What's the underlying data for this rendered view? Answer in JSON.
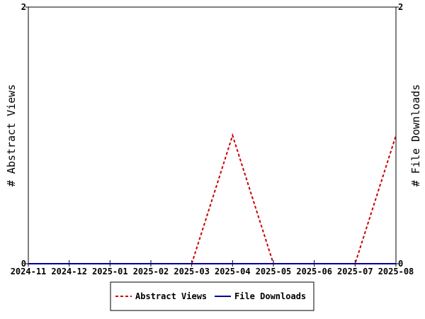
{
  "chart_data": {
    "type": "line",
    "categories": [
      "2024-11",
      "2024-12",
      "2025-01",
      "2025-02",
      "2025-03",
      "2025-04",
      "2025-05",
      "2025-06",
      "2025-07",
      "2025-08"
    ],
    "series": [
      {
        "name": "Abstract Views",
        "values": [
          0,
          0,
          0,
          0,
          0,
          1,
          0,
          0,
          0,
          1
        ],
        "color": "#cc0000",
        "style": "dashed",
        "axis": "left"
      },
      {
        "name": "File Downloads",
        "values": [
          0,
          0,
          0,
          0,
          0,
          0,
          0,
          0,
          0,
          0
        ],
        "color": "#000099",
        "style": "solid",
        "axis": "right"
      }
    ],
    "ylabel_left": "# Abstract Views",
    "ylabel_right": "# File Downloads",
    "ylim_left": [
      0,
      2
    ],
    "ylim_right": [
      0,
      2
    ],
    "yticks_left": [
      "0",
      "2"
    ],
    "yticks_right": [
      "0",
      "2"
    ],
    "grid": false,
    "legend": "bottom-center"
  }
}
